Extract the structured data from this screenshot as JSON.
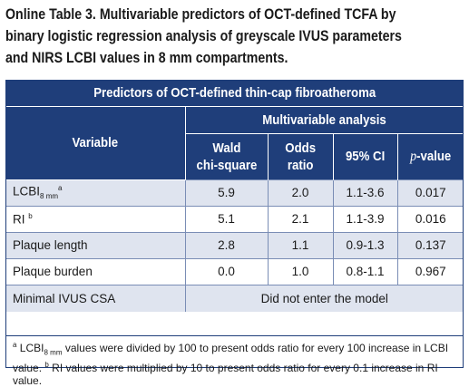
{
  "title_lines": [
    "Online Table 3. Multivariable predictors of OCT-defined TCFA by",
    "binary logistic regression analysis of greyscale IVUS parameters",
    "and NIRS LCBI values in 8 mm compartments."
  ],
  "table": {
    "banner": "Predictors of OCT-defined thin-cap fibroatheroma",
    "variable_header": "Variable",
    "group_header": "Multivariable analysis",
    "columns": {
      "wald_line1": "Wald",
      "wald_line2": "chi-square",
      "odds_line1": "Odds",
      "odds_line2": "ratio",
      "ci": "95% CI",
      "p_prefix": "p",
      "p_suffix": "-value"
    },
    "rows": [
      {
        "variable": "LCBI",
        "sub": "8 mm",
        "sup": "a",
        "wald": "5.9",
        "odds": "2.0",
        "ci": "1.1-3.6",
        "p": "0.017"
      },
      {
        "variable": "RI",
        "sup": "b",
        "wald": "5.1",
        "odds": "2.1",
        "ci": "1.1-3.9",
        "p": "0.016"
      },
      {
        "variable": "Plaque length",
        "wald": "2.8",
        "odds": "1.1",
        "ci": "0.9-1.3",
        "p": "0.137"
      },
      {
        "variable": "Plaque burden",
        "wald": "0.0",
        "odds": "1.0",
        "ci": "0.8-1.1",
        "p": "0.967"
      },
      {
        "variable": "Minimal IVUS CSA",
        "span_text": "Did not enter the model"
      }
    ]
  },
  "footnotes": {
    "a_marker": "a",
    "a_lcbi": "LCBI",
    "a_sub": "8 mm",
    "a_text_1": " values were divided by 100 to present odds ratio for every 100 increase in LCBI",
    "a_text_2": "value. ",
    "b_marker": "b",
    "b_text_1": " RI values were multiplied by 10 to present odds ratio for every 0.1 increase in RI",
    "b_text_2": "value."
  },
  "colors": {
    "header_bg": "#1f3e7a",
    "shade_bg": "#dfe4ef",
    "border": "#7a8db5"
  }
}
